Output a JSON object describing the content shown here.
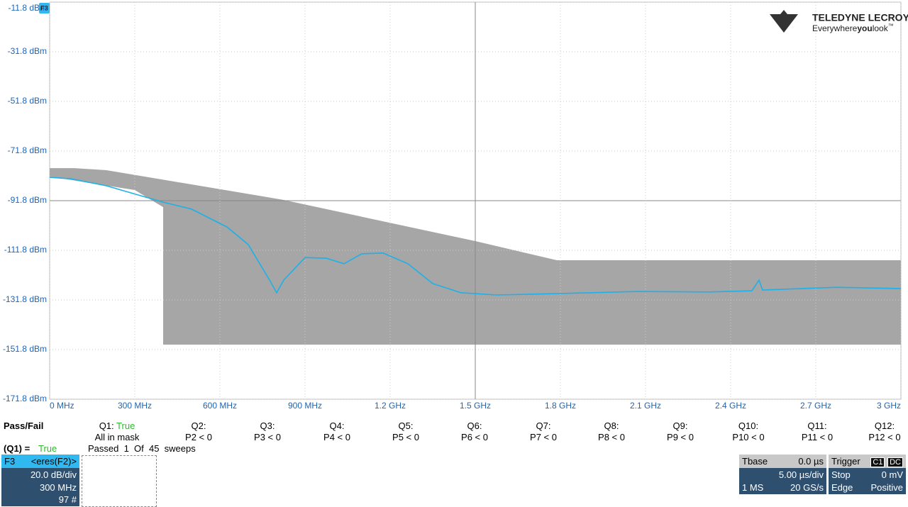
{
  "chart_data": {
    "type": "line",
    "badge": "F3",
    "xlim": [
      0,
      3000
    ],
    "ylim": [
      -171.8,
      -11.8
    ],
    "grid": true,
    "xticks": [
      {
        "value": 0,
        "label": "0 MHz"
      },
      {
        "value": 300,
        "label": "300 MHz"
      },
      {
        "value": 600,
        "label": "600 MHz"
      },
      {
        "value": 900,
        "label": "900 MHz"
      },
      {
        "value": 1200,
        "label": "1.2 GHz"
      },
      {
        "value": 1500,
        "label": "1.5 GHz"
      },
      {
        "value": 1800,
        "label": "1.8 GHz"
      },
      {
        "value": 2100,
        "label": "2.1 GHz"
      },
      {
        "value": 2400,
        "label": "2.4 GHz"
      },
      {
        "value": 2700,
        "label": "2.7 GHz"
      },
      {
        "value": 3000,
        "label": "3 GHz"
      }
    ],
    "yticks": [
      {
        "value": -11.8,
        "label": "-11.8 dBm"
      },
      {
        "value": -31.8,
        "label": "-31.8 dBm"
      },
      {
        "value": -51.8,
        "label": "-51.8 dBm"
      },
      {
        "value": -71.8,
        "label": "-71.8 dBm"
      },
      {
        "value": -91.8,
        "label": "-91.8 dBm"
      },
      {
        "value": -111.8,
        "label": "-111.8 dBm"
      },
      {
        "value": -131.8,
        "label": "-131.8 dBm"
      },
      {
        "value": -151.8,
        "label": "-151.8 dBm"
      },
      {
        "value": -171.8,
        "label": "-171.8 dBm"
      }
    ],
    "mask": {
      "color": "#a6a6a6",
      "x": [
        0,
        87.5,
        200,
        825,
        1500,
        1787.5,
        3000,
        3000,
        400,
        400,
        300,
        0
      ],
      "y": [
        -78.7,
        -78.7,
        -79.5,
        -91.5,
        -108.1,
        -115.8,
        -115.8,
        -149.8,
        -149.8,
        -94.4,
        -87.5,
        -82.1
      ]
    },
    "series": [
      {
        "color": "#1eb0e8",
        "x": [
          0,
          75,
          200,
          400,
          500,
          625,
          700,
          775,
          800,
          825,
          900,
          975,
          1037.5,
          1100,
          1175,
          1262.5,
          1350,
          1450,
          1575,
          1800,
          2075,
          2325,
          2475,
          2500,
          2512.5,
          2775,
          3000
        ],
        "values": [
          -82.4,
          -83.0,
          -85.8,
          -92.4,
          -95.2,
          -102.4,
          -109.5,
          -123.8,
          -128.9,
          -123.8,
          -114.7,
          -115.0,
          -117.2,
          -113.2,
          -112.9,
          -117.2,
          -125.2,
          -128.9,
          -129.8,
          -129.2,
          -128.4,
          -128.6,
          -128.1,
          -123.8,
          -127.8,
          -126.7,
          -127.2
        ]
      }
    ]
  },
  "logo": {
    "brand": "TELEDYNE LECROY",
    "tag1": "Everywhere",
    "tag2": "you",
    "tag3": "look",
    "tm": "™"
  },
  "pass_fail": {
    "title": "Pass/Fail",
    "queries": [
      {
        "label": "Q1:",
        "value": "True",
        "condition": "All in mask"
      },
      {
        "label": "Q2:",
        "condition": "P2 < 0"
      },
      {
        "label": "Q3:",
        "condition": "P3 < 0"
      },
      {
        "label": "Q4:",
        "condition": "P4 < 0"
      },
      {
        "label": "Q5:",
        "condition": "P5 < 0"
      },
      {
        "label": "Q6:",
        "condition": "P6 < 0"
      },
      {
        "label": "Q7:",
        "condition": "P7 < 0"
      },
      {
        "label": "Q8:",
        "condition": "P8 < 0"
      },
      {
        "label": "Q9:",
        "condition": "P9 < 0"
      },
      {
        "label": "Q10:",
        "condition": "P10 < 0"
      },
      {
        "label": "Q11:",
        "condition": "P11 < 0"
      },
      {
        "label": "Q12:",
        "condition": "P12 < 0"
      }
    ],
    "summary": {
      "label": "(Q1) =",
      "value": "True",
      "passed": "Passed  1  Of  45  sweeps"
    }
  },
  "trace_box": {
    "name": "F3",
    "source": "<eres(F2)>",
    "scale": "20.0 dB/div",
    "center": "300 MHz",
    "count": "97 #"
  },
  "timebase": {
    "title": "Tbase",
    "delay": "0.0 µs",
    "scale": "5.00 µs/div",
    "points": "1 MS",
    "rate": "20 GS/s"
  },
  "trigger": {
    "title": "Trigger",
    "source": "C1",
    "coupling": "DC",
    "mode": "Stop",
    "level": "0 mV",
    "type": "Edge",
    "slope": "Positive"
  }
}
